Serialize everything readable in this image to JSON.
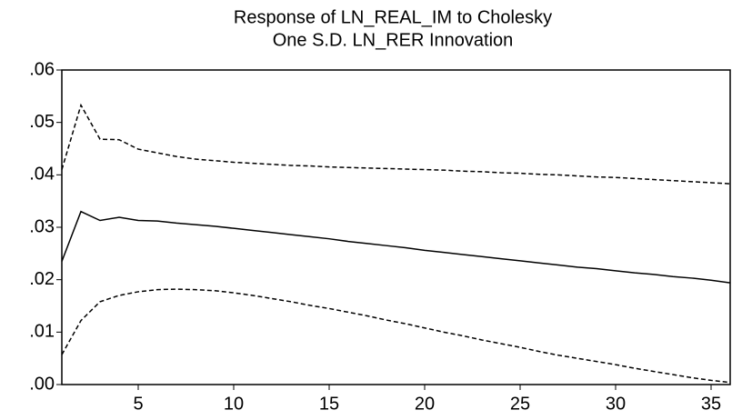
{
  "chart_data": {
    "type": "line",
    "title_lines": [
      "Response of LN_REAL_IM to Cholesky",
      "One S.D. LN_RER Innovation"
    ],
    "x": [
      1,
      2,
      3,
      4,
      5,
      6,
      7,
      8,
      9,
      10,
      11,
      12,
      13,
      14,
      15,
      16,
      17,
      18,
      19,
      20,
      21,
      22,
      23,
      24,
      25,
      26,
      27,
      28,
      29,
      30,
      31,
      32,
      33,
      34,
      35,
      36
    ],
    "series": [
      {
        "color": "#000000",
        "dashed": false,
        "values": [
          0.0235,
          0.033,
          0.0313,
          0.0319,
          0.0313,
          0.0312,
          0.0308,
          0.0305,
          0.0302,
          0.0298,
          0.0294,
          0.029,
          0.0286,
          0.0282,
          0.0278,
          0.0273,
          0.0269,
          0.0265,
          0.0261,
          0.0256,
          0.0252,
          0.0248,
          0.0244,
          0.024,
          0.0236,
          0.0232,
          0.0228,
          0.0224,
          0.0221,
          0.0217,
          0.0213,
          0.021,
          0.0206,
          0.0203,
          0.0199,
          0.0194
        ]
      },
      {
        "color": "#000000",
        "dashed": true,
        "values": [
          0.041,
          0.0533,
          0.0468,
          0.0467,
          0.0449,
          0.0442,
          0.0435,
          0.043,
          0.0427,
          0.0424,
          0.0422,
          0.042,
          0.0418,
          0.0417,
          0.0415,
          0.0414,
          0.0413,
          0.0412,
          0.0411,
          0.041,
          0.0409,
          0.0407,
          0.0406,
          0.0404,
          0.0403,
          0.0401,
          0.04,
          0.0398,
          0.0396,
          0.0395,
          0.0393,
          0.0391,
          0.0389,
          0.0387,
          0.0385,
          0.0383
        ]
      },
      {
        "color": "#000000",
        "dashed": true,
        "values": [
          0.0057,
          0.0122,
          0.0158,
          0.017,
          0.0177,
          0.0181,
          0.0182,
          0.0181,
          0.0179,
          0.0175,
          0.017,
          0.0164,
          0.0158,
          0.0151,
          0.0145,
          0.0138,
          0.0131,
          0.0123,
          0.0116,
          0.0108,
          0.01,
          0.0093,
          0.0085,
          0.0078,
          0.0071,
          0.0063,
          0.0056,
          0.005,
          0.0044,
          0.0038,
          0.0031,
          0.0025,
          0.0019,
          0.0013,
          0.0008,
          0.0004
        ]
      }
    ],
    "xlim": [
      1,
      36
    ],
    "xticks": [
      5,
      10,
      15,
      20,
      25,
      30,
      35
    ],
    "ylim": [
      0,
      0.06
    ],
    "yticks": [
      {
        "value": 0,
        "label": ".00"
      },
      {
        "value": 0.01,
        "label": ".01"
      },
      {
        "value": 0.02,
        "label": ".02"
      },
      {
        "value": 0.03,
        "label": ".03"
      },
      {
        "value": 0.04,
        "label": ".04"
      },
      {
        "value": 0.05,
        "label": ".05"
      },
      {
        "value": 0.06,
        "label": ".06"
      }
    ],
    "grid": false
  }
}
